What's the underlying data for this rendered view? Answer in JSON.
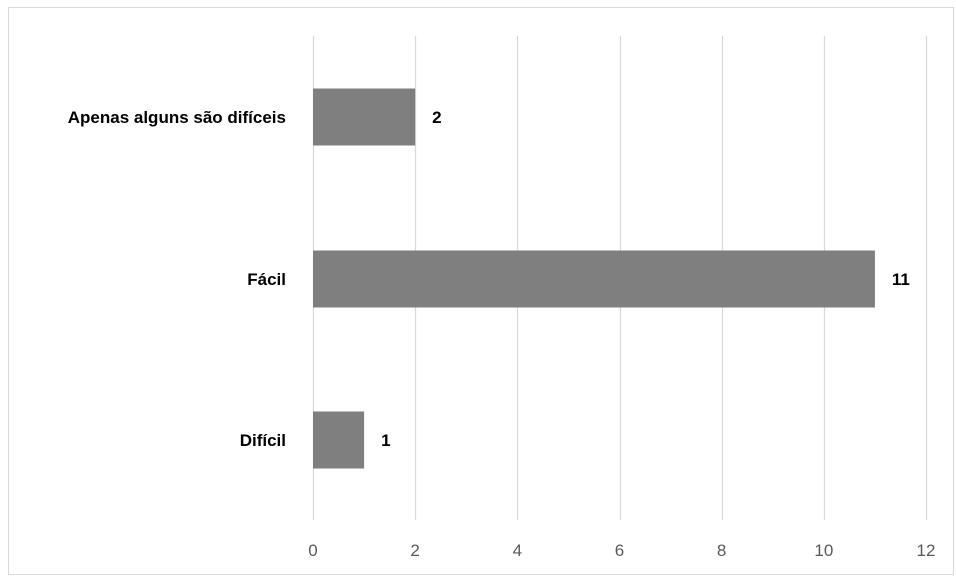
{
  "chart_data": {
    "type": "bar",
    "orientation": "horizontal",
    "categories": [
      "Apenas alguns são difíceis",
      "Fácil",
      "Difícil"
    ],
    "values": [
      2,
      11,
      1
    ],
    "xlim": [
      0,
      12
    ],
    "xticks": [
      0,
      2,
      4,
      6,
      8,
      10,
      12
    ],
    "grid": true,
    "legend": "none",
    "colors": {
      "bar": "#7f7f7f",
      "grid": "#d9d9d9",
      "tick_text": "#595959",
      "label_text": "#000000"
    }
  }
}
